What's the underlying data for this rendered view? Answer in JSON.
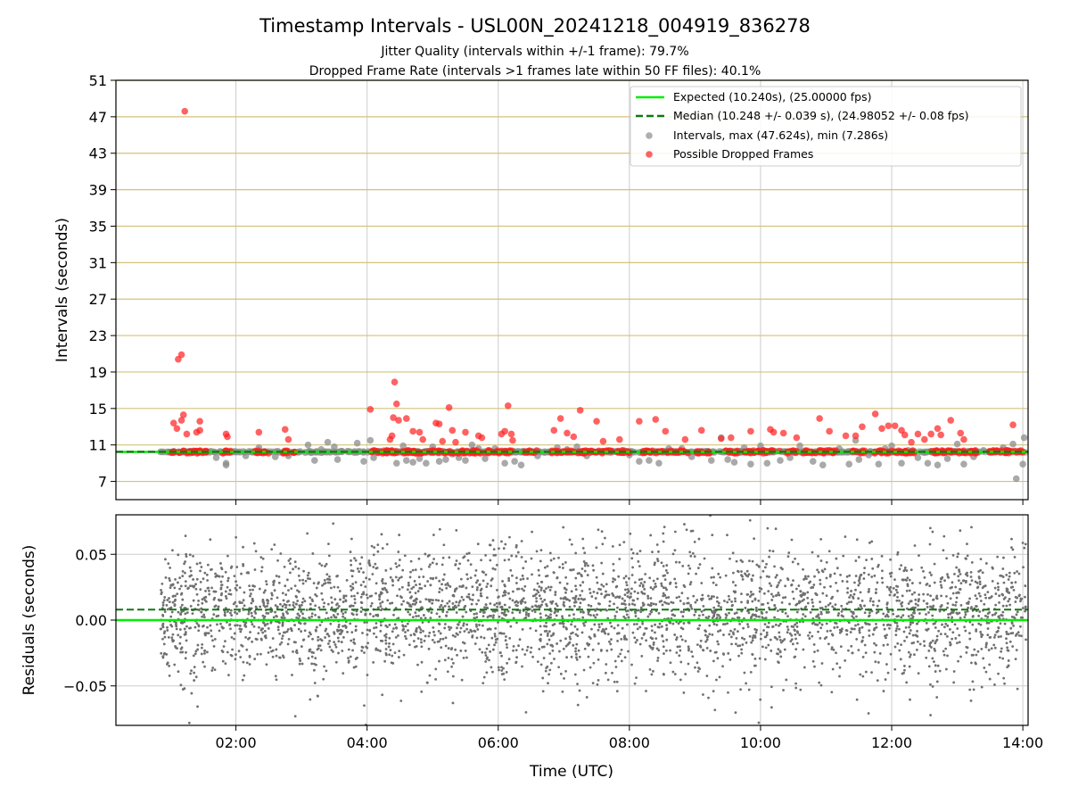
{
  "chart_data": [
    {
      "type": "scatter",
      "title": "Timestamp Intervals - USL00N_20241218_004919_836278",
      "subtitle_lines": [
        "Jitter Quality (intervals within +/-1 frame): 79.7%",
        "Dropped Frame Rate (intervals >1 frames late within 50 FF files): 40.1%"
      ],
      "xlabel": "",
      "ylabel": "Intervals (seconds)",
      "x_unit": "hours UTC",
      "xlim": [
        0.17,
        14.08
      ],
      "ylim": [
        5,
        51
      ],
      "yticks": [
        7,
        11,
        15,
        19,
        23,
        27,
        31,
        35,
        39,
        43,
        47,
        51
      ],
      "xticks": [
        2,
        4,
        6,
        8,
        10,
        12,
        14
      ],
      "xtick_labels": [
        "02:00",
        "04:00",
        "06:00",
        "08:00",
        "10:00",
        "12:00",
        "14:00"
      ],
      "horizontal_gridlines_color": "#d4c27a",
      "vertical_gridlines": true,
      "legend_location": "top-right",
      "legend": [
        "Expected (10.240s), (25.00000 fps)",
        "Median (10.248 +/- 0.039 s), (24.98052 +/- 0.08 fps)",
        "Intervals, max (47.624s), min (7.286s)",
        "Possible Dropped Frames"
      ],
      "expected_line": {
        "y": 10.24,
        "color": "#00ee00",
        "style": "solid"
      },
      "median_line": {
        "y": 10.248,
        "color": "#117711",
        "style": "dashed"
      },
      "series": [
        {
          "name": "Intervals",
          "color": "#8c8c8c",
          "points": [
            [
              0.85,
              10.24
            ],
            [
              1.05,
              10.3
            ],
            [
              1.3,
              10.1
            ],
            [
              1.55,
              10.2
            ],
            [
              1.7,
              9.6
            ],
            [
              1.85,
              9.0
            ],
            [
              1.85,
              8.8
            ],
            [
              2.15,
              9.8
            ],
            [
              2.35,
              10.7
            ],
            [
              2.6,
              9.7
            ],
            [
              2.8,
              9.8
            ],
            [
              2.95,
              10.2
            ],
            [
              3.1,
              11.0
            ],
            [
              3.2,
              9.3
            ],
            [
              3.3,
              10.5
            ],
            [
              3.4,
              11.3
            ],
            [
              3.5,
              10.8
            ],
            [
              3.55,
              9.4
            ],
            [
              3.7,
              10.3
            ],
            [
              3.85,
              11.2
            ],
            [
              3.95,
              9.2
            ],
            [
              4.05,
              11.5
            ],
            [
              4.1,
              9.6
            ],
            [
              4.3,
              10.4
            ],
            [
              4.45,
              9.0
            ],
            [
              4.55,
              10.9
            ],
            [
              4.6,
              9.3
            ],
            [
              4.7,
              9.1
            ],
            [
              4.8,
              9.5
            ],
            [
              4.9,
              9.0
            ],
            [
              5.0,
              10.8
            ],
            [
              5.1,
              9.2
            ],
            [
              5.2,
              9.4
            ],
            [
              5.3,
              10.0
            ],
            [
              5.4,
              9.6
            ],
            [
              5.5,
              9.3
            ],
            [
              5.6,
              11.0
            ],
            [
              5.7,
              10.6
            ],
            [
              5.8,
              9.5
            ],
            [
              5.95,
              10.6
            ],
            [
              6.1,
              9.0
            ],
            [
              6.25,
              9.2
            ],
            [
              6.35,
              8.8
            ],
            [
              6.5,
              10.3
            ],
            [
              6.6,
              9.8
            ],
            [
              6.8,
              10.2
            ],
            [
              6.9,
              10.7
            ],
            [
              7.05,
              10.5
            ],
            [
              7.2,
              10.8
            ],
            [
              7.35,
              9.8
            ],
            [
              7.5,
              10.2
            ],
            [
              7.7,
              10.4
            ],
            [
              7.85,
              10.2
            ],
            [
              8.0,
              9.9
            ],
            [
              8.15,
              9.2
            ],
            [
              8.3,
              9.3
            ],
            [
              8.45,
              9.0
            ],
            [
              8.6,
              10.6
            ],
            [
              8.8,
              10.6
            ],
            [
              8.95,
              9.7
            ],
            [
              9.05,
              10.1
            ],
            [
              9.25,
              9.3
            ],
            [
              9.4,
              11.8
            ],
            [
              9.5,
              9.4
            ],
            [
              9.6,
              9.1
            ],
            [
              9.75,
              10.7
            ],
            [
              9.85,
              8.9
            ],
            [
              10.0,
              10.9
            ],
            [
              10.1,
              9.0
            ],
            [
              10.3,
              9.3
            ],
            [
              10.45,
              9.6
            ],
            [
              10.6,
              10.9
            ],
            [
              10.8,
              9.2
            ],
            [
              10.95,
              8.8
            ],
            [
              11.05,
              10.3
            ],
            [
              11.2,
              10.6
            ],
            [
              11.35,
              8.9
            ],
            [
              11.45,
              11.5
            ],
            [
              11.5,
              9.4
            ],
            [
              11.65,
              9.9
            ],
            [
              11.8,
              8.9
            ],
            [
              11.9,
              10.6
            ],
            [
              12.0,
              10.9
            ],
            [
              12.15,
              9.0
            ],
            [
              12.25,
              10.4
            ],
            [
              12.4,
              9.6
            ],
            [
              12.55,
              9.0
            ],
            [
              12.7,
              8.8
            ],
            [
              12.85,
              9.5
            ],
            [
              13.0,
              11.1
            ],
            [
              13.1,
              8.9
            ],
            [
              13.25,
              9.7
            ],
            [
              13.4,
              10.4
            ],
            [
              13.55,
              10.3
            ],
            [
              13.7,
              10.7
            ],
            [
              13.85,
              11.1
            ],
            [
              13.9,
              7.3
            ],
            [
              14.0,
              8.9
            ],
            [
              14.02,
              11.8
            ]
          ]
        },
        {
          "name": "Possible Dropped Frames",
          "color": "#ff2020",
          "points": [
            [
              1.05,
              13.4
            ],
            [
              1.1,
              12.8
            ],
            [
              1.12,
              20.4
            ],
            [
              1.17,
              20.9
            ],
            [
              1.17,
              13.7
            ],
            [
              1.2,
              14.3
            ],
            [
              1.25,
              12.2
            ],
            [
              1.22,
              47.6
            ],
            [
              1.45,
              13.6
            ],
            [
              1.45,
              12.6
            ],
            [
              1.4,
              12.4
            ],
            [
              1.85,
              12.2
            ],
            [
              1.87,
              11.9
            ],
            [
              2.35,
              12.4
            ],
            [
              2.75,
              12.7
            ],
            [
              2.8,
              11.6
            ],
            [
              4.05,
              14.9
            ],
            [
              4.35,
              11.6
            ],
            [
              4.38,
              12.0
            ],
            [
              4.4,
              14.0
            ],
            [
              4.42,
              17.9
            ],
            [
              4.45,
              15.5
            ],
            [
              4.48,
              13.7
            ],
            [
              4.6,
              13.9
            ],
            [
              4.7,
              12.5
            ],
            [
              4.8,
              12.4
            ],
            [
              4.85,
              11.6
            ],
            [
              5.05,
              13.4
            ],
            [
              5.1,
              13.3
            ],
            [
              5.15,
              11.4
            ],
            [
              5.25,
              15.1
            ],
            [
              5.3,
              12.6
            ],
            [
              5.35,
              11.3
            ],
            [
              5.5,
              12.4
            ],
            [
              5.7,
              12.0
            ],
            [
              5.75,
              11.8
            ],
            [
              6.05,
              12.2
            ],
            [
              6.1,
              12.5
            ],
            [
              6.15,
              15.3
            ],
            [
              6.2,
              12.2
            ],
            [
              6.22,
              11.5
            ],
            [
              6.85,
              12.6
            ],
            [
              6.95,
              13.9
            ],
            [
              7.05,
              12.3
            ],
            [
              7.15,
              11.9
            ],
            [
              7.25,
              14.8
            ],
            [
              7.5,
              13.6
            ],
            [
              7.6,
              11.4
            ],
            [
              7.85,
              11.6
            ],
            [
              8.15,
              13.6
            ],
            [
              8.4,
              13.8
            ],
            [
              8.55,
              12.5
            ],
            [
              8.85,
              11.6
            ],
            [
              9.1,
              12.6
            ],
            [
              9.4,
              11.7
            ],
            [
              9.55,
              11.8
            ],
            [
              9.85,
              12.5
            ],
            [
              10.15,
              12.7
            ],
            [
              10.2,
              12.4
            ],
            [
              10.35,
              12.3
            ],
            [
              10.55,
              11.8
            ],
            [
              10.9,
              13.9
            ],
            [
              11.05,
              12.5
            ],
            [
              11.3,
              12.0
            ],
            [
              11.45,
              12.0
            ],
            [
              11.55,
              13.0
            ],
            [
              11.75,
              14.4
            ],
            [
              11.85,
              12.8
            ],
            [
              11.95,
              13.1
            ],
            [
              12.05,
              13.1
            ],
            [
              12.15,
              12.6
            ],
            [
              12.2,
              12.1
            ],
            [
              12.3,
              11.3
            ],
            [
              12.4,
              12.2
            ],
            [
              12.5,
              11.6
            ],
            [
              12.6,
              12.2
            ],
            [
              12.7,
              12.8
            ],
            [
              12.75,
              12.1
            ],
            [
              12.9,
              13.7
            ],
            [
              13.05,
              12.3
            ],
            [
              13.1,
              11.6
            ],
            [
              13.85,
              13.2
            ]
          ]
        }
      ]
    },
    {
      "type": "scatter",
      "title": "",
      "xlabel": "Time (UTC)",
      "ylabel": "Residuals (seconds)",
      "xlim": [
        0.17,
        14.08
      ],
      "ylim": [
        -0.08,
        0.08
      ],
      "yticks": [
        -0.05,
        0.0,
        0.05
      ],
      "ytick_labels": [
        "−0.05",
        "0.00",
        "0.05"
      ],
      "xticks": [
        2,
        4,
        6,
        8,
        10,
        12,
        14
      ],
      "xtick_labels": [
        "02:00",
        "04:00",
        "06:00",
        "08:00",
        "10:00",
        "12:00",
        "14:00"
      ],
      "grid": true,
      "expected_line": {
        "y": 0.0,
        "color": "#00ee00",
        "style": "solid"
      },
      "median_line": {
        "y": 0.008,
        "color": "#117711",
        "style": "dashed"
      },
      "series": [
        {
          "name": "Residuals",
          "color": "#707070",
          "x_range": [
            0.85,
            14.05
          ],
          "y_std": 0.025,
          "count": 3600
        }
      ]
    }
  ]
}
